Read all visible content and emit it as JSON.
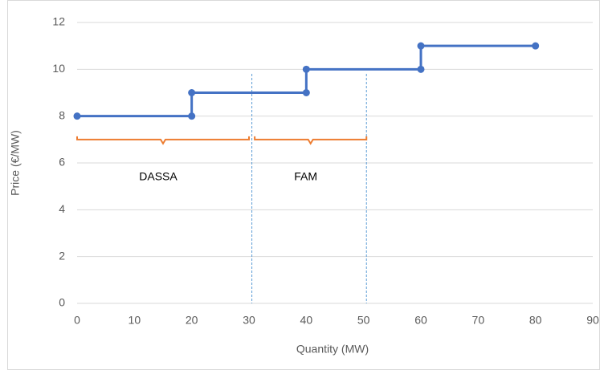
{
  "chart_data": {
    "type": "line",
    "x": [
      0,
      20,
      20,
      40,
      40,
      60,
      60,
      80
    ],
    "series": [
      {
        "color": "#4472c4",
        "values": [
          8,
          8,
          9,
          9,
          10,
          10,
          11,
          11
        ]
      }
    ],
    "xlim": [
      0,
      90
    ],
    "xticks": [
      0,
      10,
      20,
      30,
      40,
      50,
      60,
      70,
      80,
      90
    ],
    "ylim": [
      0,
      12
    ],
    "yticks": [
      0,
      2,
      4,
      6,
      8,
      10,
      12
    ],
    "xlabel": "Quantity (MW)",
    "ylabel": "Price (€/MW)",
    "grid": true,
    "vlines": [
      30.5,
      50.5
    ],
    "braces": [
      {
        "label": "DASSA",
        "x": [
          0,
          30
        ]
      },
      {
        "label": "FAM",
        "x": [
          31,
          50.5
        ]
      }
    ],
    "brace_y": 7,
    "brace_color": "#ed7d31"
  }
}
